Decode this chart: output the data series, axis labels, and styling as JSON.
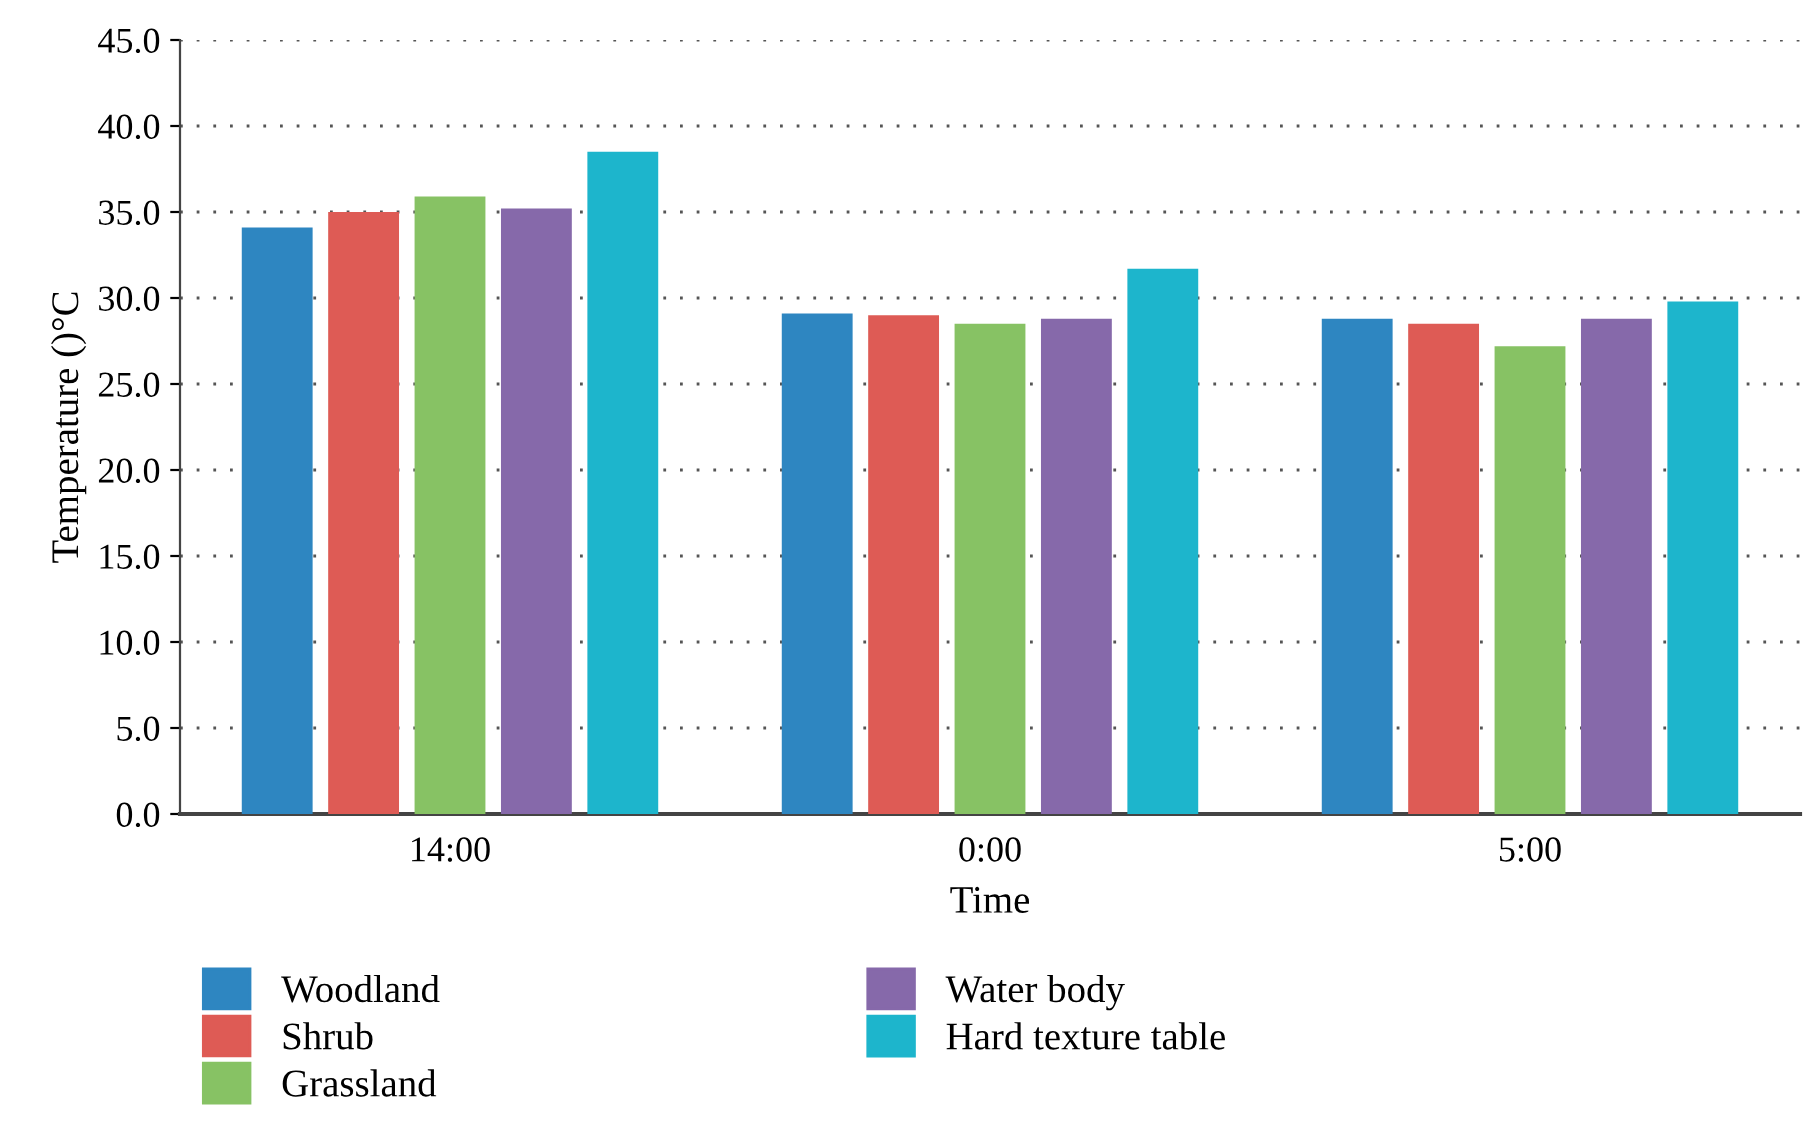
{
  "chart_data": {
    "type": "bar",
    "xlabel": "Time",
    "ylabel": "Temperature ()°C",
    "categories": [
      "14:00",
      "0:00",
      "5:00"
    ],
    "series": [
      {
        "name": "Woodland",
        "color": "#2e86c1",
        "values": [
          34.1,
          29.1,
          28.8
        ]
      },
      {
        "name": "Shrub",
        "color": "#de5b55",
        "values": [
          35.0,
          29.0,
          28.5
        ]
      },
      {
        "name": "Grassland",
        "color": "#87c264",
        "values": [
          35.9,
          28.5,
          27.2
        ]
      },
      {
        "name": "Water body",
        "color": "#8669aa",
        "values": [
          35.2,
          28.8,
          28.8
        ]
      },
      {
        "name": "Hard texture table",
        "color": "#1db5cc",
        "values": [
          38.5,
          31.7,
          29.8
        ]
      }
    ],
    "ylim": [
      0,
      45
    ],
    "yticks": [
      {
        "value": 0,
        "label": "0.0"
      },
      {
        "value": 5,
        "label": "5.0"
      },
      {
        "value": 10,
        "label": "10.0"
      },
      {
        "value": 15,
        "label": "15.0"
      },
      {
        "value": 20,
        "label": "20.0"
      },
      {
        "value": 25,
        "label": "25.0"
      },
      {
        "value": 30,
        "label": "30.0"
      },
      {
        "value": 35,
        "label": "35.0"
      },
      {
        "value": 40,
        "label": "40.0"
      },
      {
        "value": 45,
        "label": "45.0"
      }
    ],
    "grid": "y",
    "legend": "bottom"
  }
}
